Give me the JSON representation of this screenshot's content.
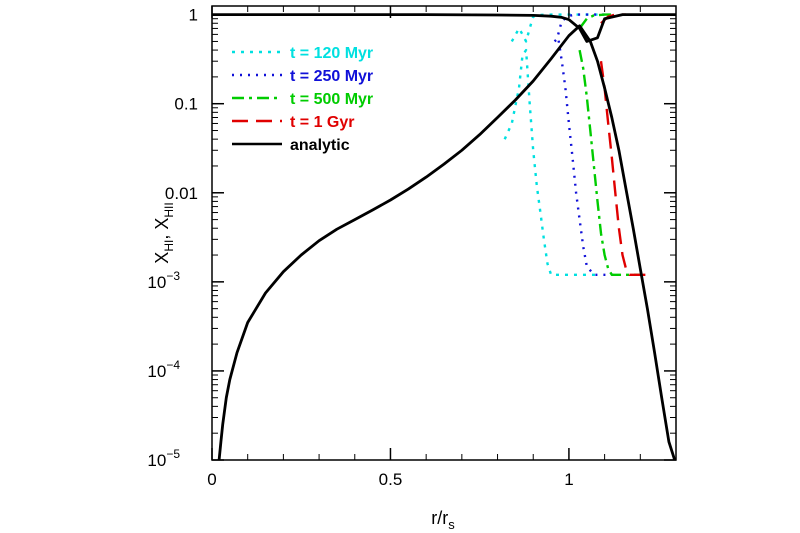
{
  "chart_data": {
    "type": "line",
    "xlabel": "r/r",
    "xlabel_sub": "s",
    "ylabel": "X",
    "ylabel_sub1": "HI",
    "ylabel_sep": ", X",
    "ylabel_sub2": "HII",
    "y_scale": "log",
    "xlim": [
      0,
      1.3
    ],
    "ylim": [
      1e-05,
      1.25
    ],
    "x_ticks": [
      {
        "value": 0,
        "label": "0"
      },
      {
        "value": 0.5,
        "label": "0.5"
      },
      {
        "value": 1,
        "label": "1"
      }
    ],
    "y_ticks": [
      {
        "value": 1,
        "label": "1",
        "exp": ""
      },
      {
        "value": 0.1,
        "label": "0.1",
        "exp": ""
      },
      {
        "value": 0.01,
        "label": "0.01",
        "exp": ""
      },
      {
        "value": 0.001,
        "label": "10",
        "exp": "−3"
      },
      {
        "value": 0.0001,
        "label": "10",
        "exp": "−4"
      },
      {
        "value": 1e-05,
        "label": "10",
        "exp": "−5"
      }
    ],
    "legend_position": "top-left",
    "series": [
      {
        "name": "t = 120 Myr",
        "color": "#00e0e0",
        "dash": "3,6",
        "curves": [
          {
            "x": [
              0.82,
              0.84,
              0.86,
              0.87,
              0.88,
              0.89,
              0.9,
              0.91,
              0.92,
              0.93,
              0.94,
              0.95,
              0.97,
              1.0,
              1.04,
              1.08
            ],
            "y": [
              0.04,
              0.06,
              0.15,
              0.35,
              0.4,
              0.1,
              0.03,
              0.012,
              0.006,
              0.003,
              0.0016,
              0.0012,
              0.0012,
              0.0012,
              0.0012,
              0.0012
            ]
          },
          {
            "x": [
              0.84,
              0.86,
              0.87,
              0.88,
              0.89,
              0.9,
              0.92,
              0.95,
              0.98,
              1.02,
              1.06,
              1.1
            ],
            "y": [
              0.5,
              0.7,
              0.6,
              0.5,
              0.7,
              0.95,
              0.99,
              1.0,
              1.0,
              1.0,
              1.0,
              1.0
            ]
          }
        ]
      },
      {
        "name": "t = 250 Myr",
        "color": "#1010d8",
        "dash": "2,6",
        "curves": [
          {
            "x": [
              0.96,
              0.97,
              0.98,
              0.99,
              1.0,
              1.01,
              1.02,
              1.03,
              1.04,
              1.05,
              1.07,
              1.1,
              1.13
            ],
            "y": [
              0.5,
              0.55,
              0.3,
              0.15,
              0.06,
              0.025,
              0.01,
              0.005,
              0.0025,
              0.0015,
              0.0012,
              0.0012,
              0.0012
            ]
          },
          {
            "x": [
              0.97,
              0.98,
              1.0,
              1.02,
              1.05,
              1.08,
              1.11
            ],
            "y": [
              0.6,
              0.85,
              0.97,
              1.0,
              1.0,
              1.0,
              1.0
            ]
          }
        ]
      },
      {
        "name": "t = 500 Myr",
        "color": "#00cc00",
        "dash": "12,5,3,5",
        "curves": [
          {
            "x": [
              1.03,
              1.04,
              1.05,
              1.06,
              1.07,
              1.08,
              1.09,
              1.1,
              1.11,
              1.12,
              1.14,
              1.17,
              1.2
            ],
            "y": [
              0.4,
              0.25,
              0.12,
              0.05,
              0.02,
              0.008,
              0.0035,
              0.002,
              0.0014,
              0.0012,
              0.0012,
              0.0012,
              0.0012
            ]
          },
          {
            "x": [
              1.03,
              1.05,
              1.07,
              1.1,
              1.13
            ],
            "y": [
              0.7,
              0.9,
              0.98,
              1.0,
              1.0
            ]
          }
        ]
      },
      {
        "name": "t = 1 Gyr",
        "color": "#e00000",
        "dash": "16,8",
        "curves": [
          {
            "x": [
              1.09,
              1.1,
              1.11,
              1.12,
              1.13,
              1.14,
              1.15,
              1.16,
              1.17,
              1.19,
              1.22
            ],
            "y": [
              0.3,
              0.15,
              0.06,
              0.025,
              0.01,
              0.004,
              0.002,
              0.0014,
              0.0012,
              0.0012,
              0.0012
            ]
          },
          {
            "x": [
              1.09,
              1.11,
              1.13,
              1.16
            ],
            "y": [
              0.8,
              0.95,
              1.0,
              1.0
            ]
          }
        ]
      },
      {
        "name": "analytic",
        "color": "#000000",
        "dash": "",
        "curves": [
          {
            "x": [
              0.02,
              0.025,
              0.03,
              0.04,
              0.05,
              0.07,
              0.1,
              0.15,
              0.2,
              0.25,
              0.3,
              0.35,
              0.4,
              0.45,
              0.5,
              0.55,
              0.6,
              0.65,
              0.7,
              0.75,
              0.8,
              0.85,
              0.9,
              0.95,
              1.0,
              1.03,
              1.06,
              1.08,
              1.1,
              1.12,
              1.14,
              1.16,
              1.18,
              1.2,
              1.22,
              1.24,
              1.26,
              1.28,
              1.3
            ],
            "y": [
              1e-05,
              1.6e-05,
              2.5e-05,
              5e-05,
              8e-05,
              0.00016,
              0.00035,
              0.00075,
              0.0013,
              0.002,
              0.0029,
              0.0039,
              0.005,
              0.0064,
              0.0083,
              0.011,
              0.015,
              0.021,
              0.03,
              0.045,
              0.07,
              0.11,
              0.18,
              0.32,
              0.58,
              0.75,
              0.5,
              0.3,
              0.15,
              0.07,
              0.03,
              0.011,
              0.004,
              0.0014,
              0.0005,
              0.00016,
              5e-05,
              1.6e-05,
              9e-06
            ]
          },
          {
            "x": [
              0.0,
              0.3,
              0.6,
              0.8,
              0.9,
              0.95,
              0.98,
              1.0,
              1.03,
              1.05,
              1.08,
              1.1,
              1.15,
              1.3
            ],
            "y": [
              1.0,
              1.0,
              1.0,
              0.99,
              0.98,
              0.96,
              0.93,
              0.88,
              0.7,
              0.5,
              0.55,
              0.9,
              1.0,
              1.0
            ]
          }
        ]
      }
    ]
  }
}
